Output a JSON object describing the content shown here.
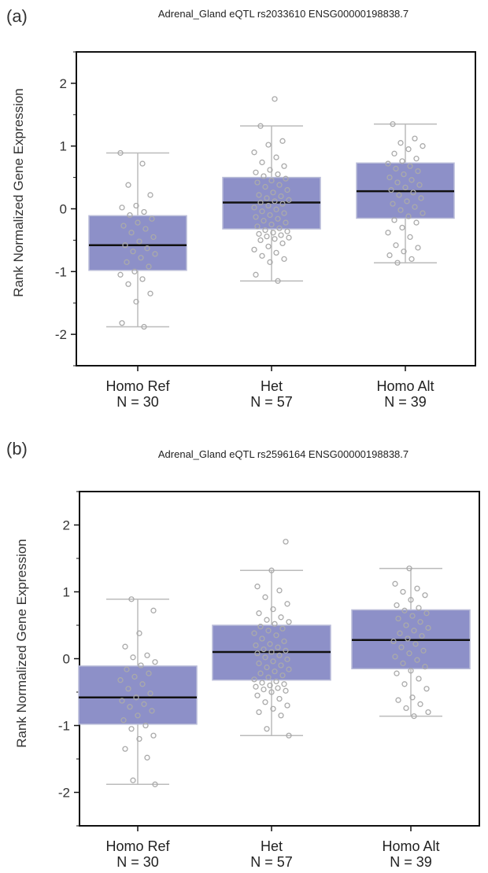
{
  "chart_data": [
    {
      "type": "box",
      "panel_label": "(a)",
      "title": "Adrenal_Gland eQTL rs2033610 ENSG00000198838.7",
      "ylabel": "Rank Normalized Gene Expression",
      "ylim": [
        -2.5,
        2.5
      ],
      "yticks": [
        -2,
        -1,
        0,
        1,
        2
      ],
      "grid": false,
      "box_color": "#8d90c8",
      "box_edge_color": "#b9bcd8",
      "point_color": "#aaaaaa",
      "categories": [
        {
          "name": "Homo Ref",
          "n_label": "N = 30",
          "whisker_low": -1.88,
          "q1": -0.98,
          "median": -0.58,
          "q3": -0.11,
          "whisker_high": 0.89,
          "points": [
            0.89,
            0.72,
            0.38,
            0.22,
            0.05,
            0.02,
            -0.05,
            -0.1,
            -0.16,
            -0.22,
            -0.27,
            -0.32,
            -0.38,
            -0.45,
            -0.52,
            -0.58,
            -0.63,
            -0.68,
            -0.72,
            -0.78,
            -0.85,
            -0.92,
            -1.0,
            -1.05,
            -1.12,
            -1.2,
            -1.35,
            -1.48,
            -1.82,
            -1.88
          ]
        },
        {
          "name": "Het",
          "n_label": "N = 57",
          "whisker_low": -1.15,
          "q1": -0.32,
          "median": 0.1,
          "q3": 0.5,
          "whisker_high": 1.32,
          "points": [
            1.75,
            1.32,
            1.08,
            1.02,
            0.9,
            0.82,
            0.74,
            0.68,
            0.62,
            0.58,
            0.55,
            0.52,
            0.48,
            0.45,
            0.42,
            0.38,
            0.35,
            0.3,
            0.26,
            0.22,
            0.2,
            0.17,
            0.14,
            0.12,
            0.1,
            0.08,
            0.05,
            0.02,
            -0.01,
            -0.04,
            -0.07,
            -0.1,
            -0.13,
            -0.16,
            -0.19,
            -0.22,
            -0.25,
            -0.28,
            -0.31,
            -0.34,
            -0.36,
            -0.38,
            -0.4,
            -0.42,
            -0.44,
            -0.46,
            -0.48,
            -0.5,
            -0.55,
            -0.6,
            -0.65,
            -0.7,
            -0.75,
            -0.8,
            -0.85,
            -1.05,
            -1.15
          ]
        },
        {
          "name": "Homo Alt",
          "n_label": "N = 39",
          "whisker_low": -0.86,
          "q1": -0.15,
          "median": 0.28,
          "q3": 0.73,
          "whisker_high": 1.35,
          "points": [
            1.35,
            1.12,
            1.05,
            1.0,
            0.95,
            0.88,
            0.8,
            0.76,
            0.72,
            0.68,
            0.64,
            0.6,
            0.55,
            0.5,
            0.46,
            0.42,
            0.38,
            0.34,
            0.3,
            0.26,
            0.22,
            0.17,
            0.12,
            0.08,
            0.03,
            -0.02,
            -0.07,
            -0.12,
            -0.18,
            -0.22,
            -0.3,
            -0.38,
            -0.45,
            -0.58,
            -0.62,
            -0.68,
            -0.74,
            -0.8,
            -0.86
          ]
        }
      ]
    },
    {
      "type": "box",
      "panel_label": "(b)",
      "title": "Adrenal_Gland eQTL rs2596164 ENSG00000198838.7",
      "ylabel": "Rank Normalized Gene Expression",
      "ylim": [
        -2.5,
        2.5
      ],
      "yticks": [
        -2,
        -1,
        0,
        1,
        2
      ],
      "grid": false,
      "box_color": "#8d90c8",
      "box_edge_color": "#b9bcd8",
      "point_color": "#aaaaaa",
      "categories": [
        {
          "name": "Homo Ref",
          "n_label": "N = 30",
          "whisker_low": -1.88,
          "q1": -0.98,
          "median": -0.58,
          "q3": -0.11,
          "whisker_high": 0.89,
          "points": [
            0.89,
            0.72,
            0.38,
            0.18,
            0.05,
            0.02,
            -0.05,
            -0.1,
            -0.16,
            -0.22,
            -0.27,
            -0.32,
            -0.38,
            -0.45,
            -0.52,
            -0.58,
            -0.63,
            -0.68,
            -0.72,
            -0.78,
            -0.85,
            -0.92,
            -1.0,
            -1.05,
            -1.15,
            -1.2,
            -1.35,
            -1.48,
            -1.82,
            -1.88
          ]
        },
        {
          "name": "Het",
          "n_label": "N = 57",
          "whisker_low": -1.15,
          "q1": -0.32,
          "median": 0.1,
          "q3": 0.5,
          "whisker_high": 1.32,
          "points": [
            1.75,
            1.32,
            1.08,
            1.02,
            0.92,
            0.82,
            0.74,
            0.68,
            0.62,
            0.58,
            0.55,
            0.52,
            0.48,
            0.45,
            0.42,
            0.38,
            0.35,
            0.3,
            0.26,
            0.22,
            0.2,
            0.17,
            0.14,
            0.12,
            0.1,
            0.08,
            0.05,
            0.02,
            -0.01,
            -0.04,
            -0.07,
            -0.1,
            -0.13,
            -0.16,
            -0.19,
            -0.22,
            -0.25,
            -0.28,
            -0.31,
            -0.34,
            -0.36,
            -0.38,
            -0.4,
            -0.42,
            -0.44,
            -0.46,
            -0.48,
            -0.5,
            -0.55,
            -0.6,
            -0.65,
            -0.7,
            -0.75,
            -0.8,
            -0.85,
            -1.05,
            -1.15
          ]
        },
        {
          "name": "Homo Alt",
          "n_label": "N = 39",
          "whisker_low": -0.86,
          "q1": -0.15,
          "median": 0.28,
          "q3": 0.73,
          "whisker_high": 1.35,
          "points": [
            1.35,
            1.12,
            1.05,
            1.0,
            0.95,
            0.88,
            0.8,
            0.76,
            0.72,
            0.68,
            0.64,
            0.6,
            0.55,
            0.5,
            0.46,
            0.42,
            0.38,
            0.34,
            0.3,
            0.26,
            0.22,
            0.17,
            0.12,
            0.08,
            0.03,
            -0.02,
            -0.07,
            -0.12,
            -0.18,
            -0.22,
            -0.3,
            -0.38,
            -0.45,
            -0.58,
            -0.62,
            -0.68,
            -0.74,
            -0.8,
            -0.86
          ]
        }
      ]
    }
  ]
}
